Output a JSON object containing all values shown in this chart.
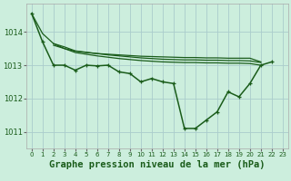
{
  "background_color": "#cceedd",
  "grid_color": "#aacccc",
  "line_color": "#1a5c1a",
  "title": "Graphe pression niveau de la mer (hPa)",
  "title_fontsize": 7.5,
  "xlim": [
    -0.5,
    23.5
  ],
  "ylim": [
    1010.5,
    1014.85
  ],
  "yticks": [
    1011,
    1012,
    1013,
    1014
  ],
  "xticks": [
    0,
    1,
    2,
    3,
    4,
    5,
    6,
    7,
    8,
    9,
    10,
    11,
    12,
    13,
    14,
    15,
    16,
    17,
    18,
    19,
    20,
    21,
    22,
    23
  ],
  "series_flat1": {
    "x": [
      0,
      1,
      2,
      3,
      4,
      5,
      6,
      7,
      8,
      9,
      10,
      11,
      12,
      13,
      14,
      15,
      16,
      17,
      18,
      19,
      20,
      21
    ],
    "y": [
      1014.55,
      1013.95,
      1013.65,
      1013.5,
      1013.42,
      1013.38,
      1013.35,
      1013.33,
      1013.31,
      1013.29,
      1013.27,
      1013.26,
      1013.25,
      1013.24,
      1013.23,
      1013.23,
      1013.22,
      1013.22,
      1013.21,
      1013.21,
      1013.21,
      1013.1
    ]
  },
  "series_flat2": {
    "x": [
      2,
      3,
      4,
      5,
      6,
      7,
      8,
      9,
      10,
      11,
      12,
      13,
      14,
      15,
      16,
      17,
      18,
      19,
      20,
      21
    ],
    "y": [
      1013.65,
      1013.55,
      1013.43,
      1013.39,
      1013.35,
      1013.31,
      1013.28,
      1013.25,
      1013.22,
      1013.2,
      1013.18,
      1013.17,
      1013.16,
      1013.16,
      1013.15,
      1013.15,
      1013.14,
      1013.14,
      1013.13,
      1013.08
    ]
  },
  "series_flat3": {
    "x": [
      2,
      3,
      4,
      5,
      6,
      7,
      8,
      9,
      10,
      11,
      12,
      13,
      14,
      15,
      16,
      17,
      18,
      19,
      20,
      21
    ],
    "y": [
      1013.6,
      1013.5,
      1013.38,
      1013.33,
      1013.28,
      1013.24,
      1013.2,
      1013.17,
      1013.14,
      1013.12,
      1013.1,
      1013.09,
      1013.08,
      1013.08,
      1013.07,
      1013.07,
      1013.06,
      1013.06,
      1013.05,
      1013.0
    ]
  },
  "series_main": {
    "x": [
      0,
      1,
      2,
      3,
      4,
      5,
      6,
      7,
      8,
      9,
      10,
      11,
      12,
      13,
      14,
      15,
      16,
      17,
      18,
      19,
      20,
      21,
      22,
      23
    ],
    "y": [
      1014.55,
      1013.7,
      1013.0,
      1013.0,
      1012.85,
      1013.0,
      1012.98,
      1013.0,
      1012.8,
      1012.75,
      1012.5,
      1012.6,
      1012.5,
      1012.45,
      1011.1,
      1011.1,
      1011.35,
      1011.6,
      1012.2,
      1012.05,
      1012.45,
      1013.0,
      1013.1,
      null
    ]
  }
}
